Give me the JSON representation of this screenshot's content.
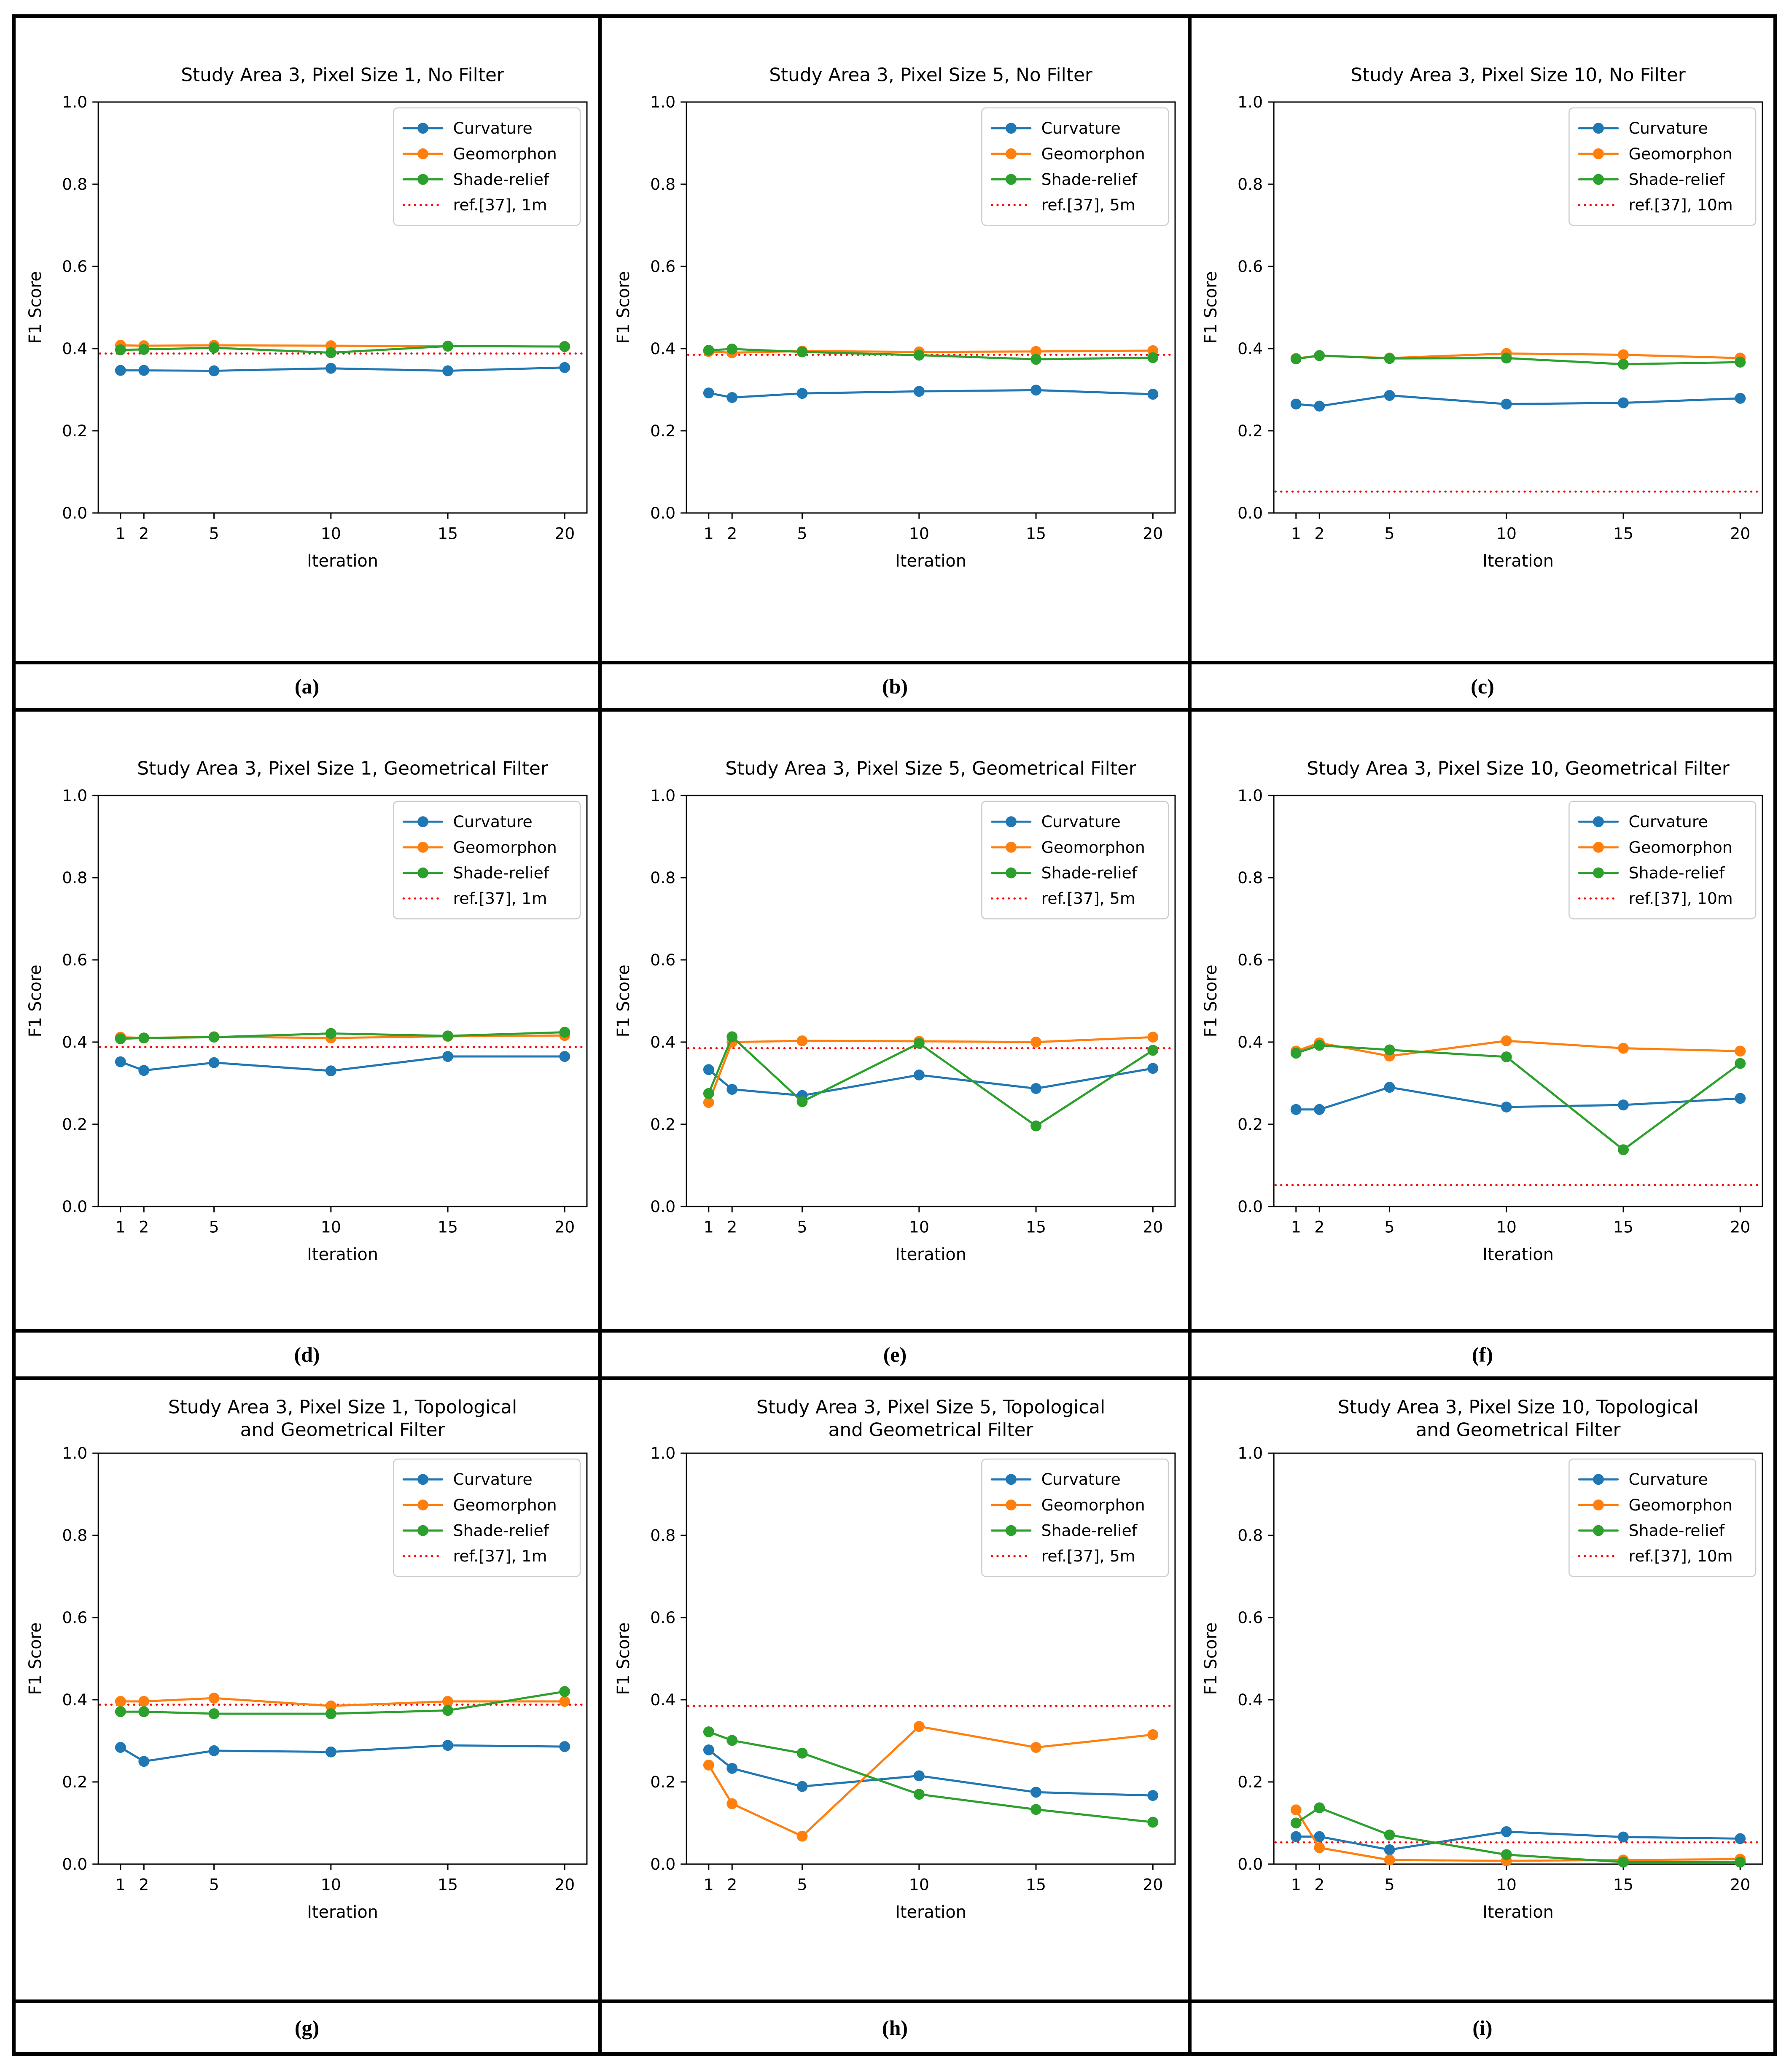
{
  "chart_data": [
    {
      "type": "line",
      "panel_label": "(a)",
      "title": "Study Area 3, Pixel Size 1, No Filter",
      "title_lines": [
        "Study Area 3, Pixel Size 1, No Filter"
      ],
      "xlabel": "Iteration",
      "ylabel": "F1 Score",
      "x": [
        1,
        2,
        5,
        10,
        15,
        20
      ],
      "x_tick_labels": [
        "1",
        "2",
        "5",
        "10",
        "15",
        "20"
      ],
      "y_tick_labels": [
        "0.0",
        "0.2",
        "0.4",
        "0.6",
        "0.8",
        "1.0"
      ],
      "xlim": [
        0.05,
        20.95
      ],
      "ylim": [
        0,
        1
      ],
      "grid": false,
      "legend_position": "upper right",
      "series": [
        {
          "name": "Curvature",
          "color": "#1f77b4",
          "marker": "circle",
          "values": [
            0.347,
            0.347,
            0.346,
            0.352,
            0.346,
            0.354
          ]
        },
        {
          "name": "Geomorphon",
          "color": "#ff7f0e",
          "marker": "circle",
          "values": [
            0.408,
            0.407,
            0.408,
            0.407,
            0.406,
            0.405
          ]
        },
        {
          "name": "Shade-relief",
          "color": "#2ca02c",
          "marker": "circle",
          "values": [
            0.397,
            0.398,
            0.402,
            0.39,
            0.406,
            0.405
          ]
        }
      ],
      "ref_line": {
        "name": "ref.[37], 1m",
        "value": 0.388,
        "color": "#ff0000",
        "style": "dotted"
      }
    },
    {
      "type": "line",
      "panel_label": "(b)",
      "title": "Study Area 3, Pixel Size 5, No Filter",
      "title_lines": [
        "Study Area 3, Pixel Size 5, No Filter"
      ],
      "xlabel": "Iteration",
      "ylabel": "F1 Score",
      "x": [
        1,
        2,
        5,
        10,
        15,
        20
      ],
      "x_tick_labels": [
        "1",
        "2",
        "5",
        "10",
        "15",
        "20"
      ],
      "y_tick_labels": [
        "0.0",
        "0.2",
        "0.4",
        "0.6",
        "0.8",
        "1.0"
      ],
      "xlim": [
        0.05,
        20.95
      ],
      "ylim": [
        0,
        1
      ],
      "grid": false,
      "legend_position": "upper right",
      "series": [
        {
          "name": "Curvature",
          "color": "#1f77b4",
          "marker": "circle",
          "values": [
            0.292,
            0.281,
            0.291,
            0.296,
            0.299,
            0.289
          ]
        },
        {
          "name": "Geomorphon",
          "color": "#ff7f0e",
          "marker": "circle",
          "values": [
            0.393,
            0.39,
            0.394,
            0.392,
            0.393,
            0.395
          ]
        },
        {
          "name": "Shade-relief",
          "color": "#2ca02c",
          "marker": "circle",
          "values": [
            0.396,
            0.399,
            0.392,
            0.384,
            0.374,
            0.378
          ]
        }
      ],
      "ref_line": {
        "name": "ref.[37], 5m",
        "value": 0.385,
        "color": "#ff0000",
        "style": "dotted"
      }
    },
    {
      "type": "line",
      "panel_label": "(c)",
      "title": "Study Area 3, Pixel Size 10, No Filter",
      "title_lines": [
        "Study Area 3, Pixel Size 10, No Filter"
      ],
      "xlabel": "Iteration",
      "ylabel": "F1 Score",
      "x": [
        1,
        2,
        5,
        10,
        15,
        20
      ],
      "x_tick_labels": [
        "1",
        "2",
        "5",
        "10",
        "15",
        "20"
      ],
      "y_tick_labels": [
        "0.0",
        "0.2",
        "0.4",
        "0.6",
        "0.8",
        "1.0"
      ],
      "xlim": [
        0.05,
        20.95
      ],
      "ylim": [
        0,
        1
      ],
      "grid": false,
      "legend_position": "upper right",
      "series": [
        {
          "name": "Curvature",
          "color": "#1f77b4",
          "marker": "circle",
          "values": [
            0.265,
            0.26,
            0.286,
            0.265,
            0.268,
            0.279
          ]
        },
        {
          "name": "Geomorphon",
          "color": "#ff7f0e",
          "marker": "circle",
          "values": [
            0.376,
            0.383,
            0.377,
            0.388,
            0.385,
            0.377
          ]
        },
        {
          "name": "Shade-relief",
          "color": "#2ca02c",
          "marker": "circle",
          "values": [
            0.375,
            0.383,
            0.376,
            0.377,
            0.362,
            0.367
          ]
        }
      ],
      "ref_line": {
        "name": "ref.[37], 10m",
        "value": 0.052,
        "color": "#ff0000",
        "style": "dotted"
      }
    },
    {
      "type": "line",
      "panel_label": "(d)",
      "title": "Study Area 3, Pixel Size 1, Geometrical Filter",
      "title_lines": [
        "Study Area 3, Pixel Size 1, Geometrical Filter"
      ],
      "xlabel": "Iteration",
      "ylabel": "F1 Score",
      "x": [
        1,
        2,
        5,
        10,
        15,
        20
      ],
      "x_tick_labels": [
        "1",
        "2",
        "5",
        "10",
        "15",
        "20"
      ],
      "y_tick_labels": [
        "0.0",
        "0.2",
        "0.4",
        "0.6",
        "0.8",
        "1.0"
      ],
      "xlim": [
        0.05,
        20.95
      ],
      "ylim": [
        0,
        1
      ],
      "grid": false,
      "legend_position": "upper right",
      "series": [
        {
          "name": "Curvature",
          "color": "#1f77b4",
          "marker": "circle",
          "values": [
            0.352,
            0.331,
            0.35,
            0.33,
            0.365,
            0.365
          ]
        },
        {
          "name": "Geomorphon",
          "color": "#ff7f0e",
          "marker": "circle",
          "values": [
            0.412,
            0.41,
            0.413,
            0.41,
            0.414,
            0.416
          ]
        },
        {
          "name": "Shade-relief",
          "color": "#2ca02c",
          "marker": "circle",
          "values": [
            0.408,
            0.41,
            0.412,
            0.421,
            0.415,
            0.424
          ]
        }
      ],
      "ref_line": {
        "name": "ref.[37], 1m",
        "value": 0.388,
        "color": "#ff0000",
        "style": "dotted"
      }
    },
    {
      "type": "line",
      "panel_label": "(e)",
      "title": "Study Area 3, Pixel Size 5, Geometrical Filter",
      "title_lines": [
        "Study Area 3, Pixel Size 5, Geometrical Filter"
      ],
      "xlabel": "Iteration",
      "ylabel": "F1 Score",
      "x": [
        1,
        2,
        5,
        10,
        15,
        20
      ],
      "x_tick_labels": [
        "1",
        "2",
        "5",
        "10",
        "15",
        "20"
      ],
      "y_tick_labels": [
        "0.0",
        "0.2",
        "0.4",
        "0.6",
        "0.8",
        "1.0"
      ],
      "xlim": [
        0.05,
        20.95
      ],
      "ylim": [
        0,
        1
      ],
      "grid": false,
      "legend_position": "upper right",
      "series": [
        {
          "name": "Curvature",
          "color": "#1f77b4",
          "marker": "circle",
          "values": [
            0.333,
            0.285,
            0.27,
            0.32,
            0.287,
            0.336
          ]
        },
        {
          "name": "Geomorphon",
          "color": "#ff7f0e",
          "marker": "circle",
          "values": [
            0.253,
            0.4,
            0.403,
            0.402,
            0.4,
            0.412
          ]
        },
        {
          "name": "Shade-relief",
          "color": "#2ca02c",
          "marker": "circle",
          "values": [
            0.275,
            0.413,
            0.255,
            0.397,
            0.196,
            0.38
          ]
        }
      ],
      "ref_line": {
        "name": "ref.[37], 5m",
        "value": 0.385,
        "color": "#ff0000",
        "style": "dotted"
      }
    },
    {
      "type": "line",
      "panel_label": "(f)",
      "title": "Study Area 3, Pixel Size 10, Geometrical Filter",
      "title_lines": [
        "Study Area 3, Pixel Size 10, Geometrical Filter"
      ],
      "xlabel": "Iteration",
      "ylabel": "F1 Score",
      "x": [
        1,
        2,
        5,
        10,
        15,
        20
      ],
      "x_tick_labels": [
        "1",
        "2",
        "5",
        "10",
        "15",
        "20"
      ],
      "y_tick_labels": [
        "0.0",
        "0.2",
        "0.4",
        "0.6",
        "0.8",
        "1.0"
      ],
      "xlim": [
        0.05,
        20.95
      ],
      "ylim": [
        0,
        1
      ],
      "grid": false,
      "legend_position": "upper right",
      "series": [
        {
          "name": "Curvature",
          "color": "#1f77b4",
          "marker": "circle",
          "values": [
            0.236,
            0.236,
            0.29,
            0.242,
            0.247,
            0.263
          ]
        },
        {
          "name": "Geomorphon",
          "color": "#ff7f0e",
          "marker": "circle",
          "values": [
            0.378,
            0.398,
            0.366,
            0.403,
            0.385,
            0.378
          ]
        },
        {
          "name": "Shade-relief",
          "color": "#2ca02c",
          "marker": "circle",
          "values": [
            0.373,
            0.392,
            0.381,
            0.364,
            0.138,
            0.348
          ]
        }
      ],
      "ref_line": {
        "name": "ref.[37], 10m",
        "value": 0.052,
        "color": "#ff0000",
        "style": "dotted"
      }
    },
    {
      "type": "line",
      "panel_label": "(g)",
      "title": "Study Area 3, Pixel Size 1, Topological and Geometrical Filter",
      "title_lines": [
        "Study Area 3, Pixel Size 1, Topological",
        "and Geometrical Filter"
      ],
      "xlabel": "Iteration",
      "ylabel": "F1 Score",
      "x": [
        1,
        2,
        5,
        10,
        15,
        20
      ],
      "x_tick_labels": [
        "1",
        "2",
        "5",
        "10",
        "15",
        "20"
      ],
      "y_tick_labels": [
        "0.0",
        "0.2",
        "0.4",
        "0.6",
        "0.8",
        "1.0"
      ],
      "xlim": [
        0.05,
        20.95
      ],
      "ylim": [
        0,
        1
      ],
      "grid": false,
      "legend_position": "upper right",
      "series": [
        {
          "name": "Curvature",
          "color": "#1f77b4",
          "marker": "circle",
          "values": [
            0.284,
            0.25,
            0.276,
            0.273,
            0.289,
            0.286
          ]
        },
        {
          "name": "Geomorphon",
          "color": "#ff7f0e",
          "marker": "circle",
          "values": [
            0.396,
            0.396,
            0.404,
            0.385,
            0.396,
            0.396
          ]
        },
        {
          "name": "Shade-relief",
          "color": "#2ca02c",
          "marker": "circle",
          "values": [
            0.371,
            0.371,
            0.366,
            0.366,
            0.374,
            0.42
          ]
        }
      ],
      "ref_line": {
        "name": "ref.[37], 1m",
        "value": 0.388,
        "color": "#ff0000",
        "style": "dotted"
      }
    },
    {
      "type": "line",
      "panel_label": "(h)",
      "title": "Study Area 3, Pixel Size 5, Topological and Geometrical Filter",
      "title_lines": [
        "Study Area 3, Pixel Size 5, Topological",
        "and Geometrical Filter"
      ],
      "xlabel": "Iteration",
      "ylabel": "F1 Score",
      "x": [
        1,
        2,
        5,
        10,
        15,
        20
      ],
      "x_tick_labels": [
        "1",
        "2",
        "5",
        "10",
        "15",
        "20"
      ],
      "y_tick_labels": [
        "0.0",
        "0.2",
        "0.4",
        "0.6",
        "0.8",
        "1.0"
      ],
      "xlim": [
        0.05,
        20.95
      ],
      "ylim": [
        0,
        1
      ],
      "grid": false,
      "legend_position": "upper right",
      "series": [
        {
          "name": "Curvature",
          "color": "#1f77b4",
          "marker": "circle",
          "values": [
            0.278,
            0.233,
            0.189,
            0.215,
            0.175,
            0.167
          ]
        },
        {
          "name": "Geomorphon",
          "color": "#ff7f0e",
          "marker": "circle",
          "values": [
            0.241,
            0.147,
            0.068,
            0.335,
            0.284,
            0.315
          ]
        },
        {
          "name": "Shade-relief",
          "color": "#2ca02c",
          "marker": "circle",
          "values": [
            0.322,
            0.301,
            0.27,
            0.17,
            0.133,
            0.102
          ]
        }
      ],
      "ref_line": {
        "name": "ref.[37], 5m",
        "value": 0.385,
        "color": "#ff0000",
        "style": "dotted"
      }
    },
    {
      "type": "line",
      "panel_label": "(i)",
      "title": "Study Area 3, Pixel Size 10, Topological and Geometrical Filter",
      "title_lines": [
        "Study Area 3, Pixel Size 10, Topological",
        "and Geometrical Filter"
      ],
      "xlabel": "Iteration",
      "ylabel": "F1 Score",
      "x": [
        1,
        2,
        5,
        10,
        15,
        20
      ],
      "x_tick_labels": [
        "1",
        "2",
        "5",
        "10",
        "15",
        "20"
      ],
      "y_tick_labels": [
        "0.0",
        "0.2",
        "0.4",
        "0.6",
        "0.8",
        "1.0"
      ],
      "xlim": [
        0.05,
        20.95
      ],
      "ylim": [
        0,
        1
      ],
      "grid": false,
      "legend_position": "upper right",
      "series": [
        {
          "name": "Curvature",
          "color": "#1f77b4",
          "marker": "circle",
          "values": [
            0.067,
            0.067,
            0.035,
            0.079,
            0.066,
            0.062
          ]
        },
        {
          "name": "Geomorphon",
          "color": "#ff7f0e",
          "marker": "circle",
          "values": [
            0.132,
            0.04,
            0.01,
            0.008,
            0.01,
            0.012
          ]
        },
        {
          "name": "Shade-relief",
          "color": "#2ca02c",
          "marker": "circle",
          "values": [
            0.1,
            0.137,
            0.071,
            0.023,
            0.005,
            0.005
          ]
        }
      ],
      "ref_line": {
        "name": "ref.[37], 10m",
        "value": 0.053,
        "color": "#ff0000",
        "style": "dotted"
      }
    }
  ]
}
